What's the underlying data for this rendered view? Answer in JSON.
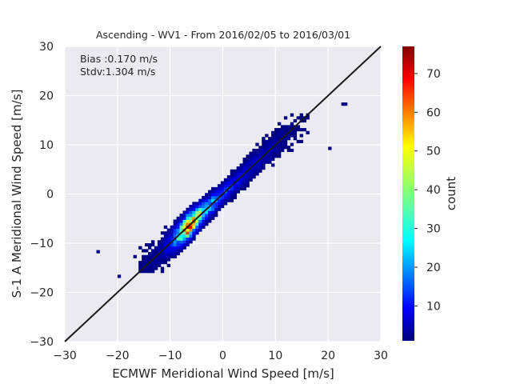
{
  "chart_data": {
    "type": "heatmap",
    "title": "Ascending - WV1 - From 2016/02/05 to 2016/03/01",
    "xlabel": "ECMWF Meridional Wind Speed [m/s]",
    "ylabel": "S-1 A Meridional Wind Speed [m/s]",
    "xlim": [
      -30,
      30
    ],
    "ylim": [
      -30,
      30
    ],
    "x_ticks": [
      "−30",
      "−20",
      "−10",
      "0",
      "10",
      "20",
      "30"
    ],
    "y_ticks": [
      "−30",
      "−20",
      "−10",
      "0",
      "10",
      "20",
      "30"
    ],
    "grid": true,
    "annotations": [
      "Bias :0.170 m/s",
      "Stdv:1.304 m/s"
    ],
    "reference_line": {
      "from": [
        -30,
        -30
      ],
      "to": [
        30,
        30
      ],
      "color": "#1a1a1a"
    },
    "colorbar": {
      "label": "count",
      "range": [
        1,
        77
      ],
      "ticks": [
        "10",
        "20",
        "30",
        "40",
        "50",
        "60",
        "70"
      ],
      "colormap": "jet"
    },
    "density_ridge": [
      {
        "x": -14,
        "count": 2
      },
      {
        "x": -12,
        "count": 4
      },
      {
        "x": -10,
        "count": 12
      },
      {
        "x": -8,
        "count": 45
      },
      {
        "x": -7,
        "count": 77
      },
      {
        "x": -6,
        "count": 60
      },
      {
        "x": -5,
        "count": 48
      },
      {
        "x": -4,
        "count": 35
      },
      {
        "x": -2,
        "count": 25
      },
      {
        "x": 0,
        "count": 18
      },
      {
        "x": 2,
        "count": 12
      },
      {
        "x": 4,
        "count": 9
      },
      {
        "x": 6,
        "count": 7
      },
      {
        "x": 8,
        "count": 5
      },
      {
        "x": 10,
        "count": 4
      },
      {
        "x": 12,
        "count": 2
      },
      {
        "x": 14,
        "count": 1
      }
    ],
    "outliers": [
      {
        "x": -24,
        "y": -12
      },
      {
        "x": -20,
        "y": -17
      },
      {
        "x": -17,
        "y": -13
      },
      {
        "x": 20,
        "y": 9
      },
      {
        "x": 23,
        "y": 18
      },
      {
        "x": 22.5,
        "y": 18
      }
    ]
  },
  "colors": {
    "plot_background": "#eaeaf2",
    "grid": "#ffffff",
    "text": "#262626"
  }
}
